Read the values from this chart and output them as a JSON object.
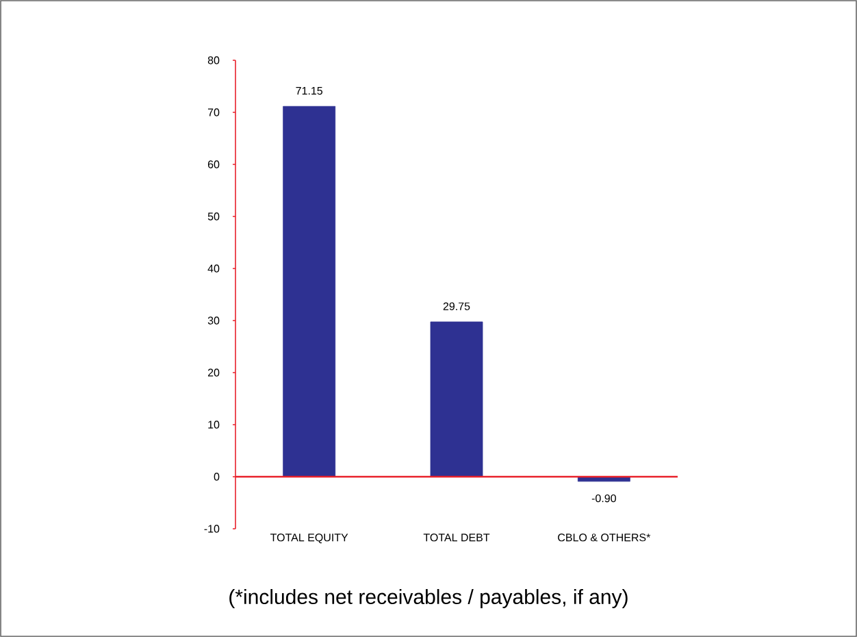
{
  "chart_data": {
    "type": "bar",
    "categories": [
      "TOTAL EQUITY",
      "TOTAL DEBT",
      "CBLO & OTHERS*"
    ],
    "values": [
      71.15,
      29.75,
      -0.9
    ],
    "value_labels": [
      "71.15",
      "29.75",
      "-0.90"
    ],
    "color": "#2e3192",
    "ylim": [
      -10,
      80
    ],
    "yticks": [
      -10,
      0,
      10,
      20,
      30,
      40,
      50,
      60,
      70,
      80
    ],
    "grid": false,
    "ref_lines": [
      {
        "axis": "y",
        "value": 0,
        "color": "#e8202a"
      }
    ],
    "annotations": [
      "(*includes net receivables / payables, if any)"
    ]
  }
}
